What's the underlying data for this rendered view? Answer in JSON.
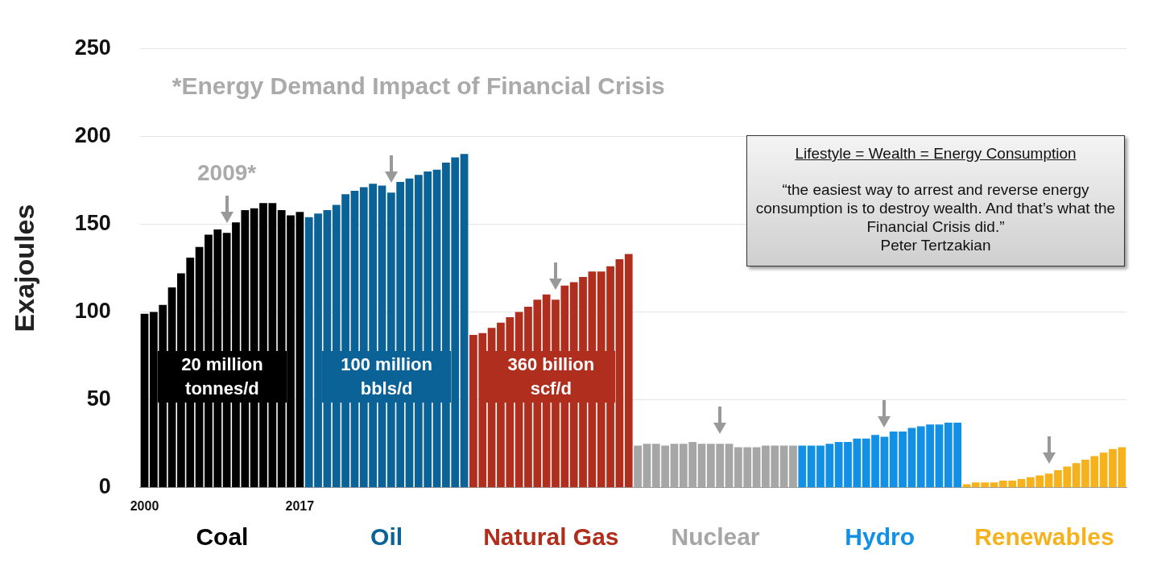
{
  "chart_data": {
    "type": "bar",
    "title": "*Energy Demand Impact of Financial Crisis",
    "ylabel": "Exajoules",
    "categories": [
      "2000",
      null,
      null,
      null,
      null,
      null,
      null,
      null,
      null,
      null,
      null,
      null,
      null,
      null,
      null,
      null,
      null,
      "2017",
      null,
      null,
      null,
      null,
      null,
      null,
      null,
      null,
      null,
      null,
      null,
      null,
      null,
      null,
      null,
      null,
      null,
      null,
      null,
      null,
      null,
      null,
      null,
      null,
      null,
      null,
      null,
      null,
      null,
      null,
      null,
      null,
      null,
      null,
      null,
      null,
      null,
      null,
      null,
      null,
      null,
      null,
      null,
      null,
      null,
      null,
      null,
      null,
      null,
      null,
      null,
      null,
      null,
      null,
      null,
      null,
      null,
      null,
      null,
      null,
      null,
      null,
      null,
      null,
      null,
      null,
      null,
      null,
      null,
      null,
      null,
      null,
      null,
      null,
      null,
      null,
      null,
      null,
      null,
      null,
      null,
      null,
      null,
      null,
      null,
      null,
      null,
      null,
      null,
      null
    ],
    "series": [
      {
        "name": "Coal",
        "color": "#000000",
        "values": [
          99,
          100,
          104,
          114,
          122,
          131,
          137,
          144,
          147,
          145,
          151,
          158,
          159,
          162,
          162,
          158,
          155,
          157,
          null,
          null,
          null,
          null,
          null,
          null,
          null,
          null,
          null,
          null,
          null,
          null,
          null,
          null,
          null,
          null,
          null,
          null,
          null,
          null,
          null,
          null,
          null,
          null,
          null,
          null,
          null,
          null,
          null,
          null,
          null,
          null,
          null,
          null,
          null,
          null,
          null,
          null,
          null,
          null,
          null,
          null,
          null,
          null,
          null,
          null,
          null,
          null,
          null,
          null,
          null,
          null,
          null,
          null,
          null,
          null,
          null,
          null,
          null,
          null,
          null,
          null,
          null,
          null,
          null,
          null,
          null,
          null,
          null,
          null,
          null,
          null,
          null,
          null,
          null,
          null,
          null,
          null,
          null,
          null,
          null,
          null,
          null,
          null,
          null,
          null,
          null,
          null,
          null,
          null
        ]
      },
      {
        "name": "Oil",
        "color": "#0b6297",
        "values": [
          null,
          null,
          null,
          null,
          null,
          null,
          null,
          null,
          null,
          null,
          null,
          null,
          null,
          null,
          null,
          null,
          null,
          null,
          154,
          156,
          158,
          161,
          167,
          169,
          171,
          173,
          172,
          168,
          174,
          176,
          178,
          180,
          181,
          185,
          188,
          190,
          null,
          null,
          null,
          null,
          null,
          null,
          null,
          null,
          null,
          null,
          null,
          null,
          null,
          null,
          null,
          null,
          null,
          null,
          null,
          null,
          null,
          null,
          null,
          null,
          null,
          null,
          null,
          null,
          null,
          null,
          null,
          null,
          null,
          null,
          null,
          null,
          null,
          null,
          null,
          null,
          null,
          null,
          null,
          null,
          null,
          null,
          null,
          null,
          null,
          null,
          null,
          null,
          null,
          null,
          null,
          null,
          null,
          null,
          null,
          null,
          null,
          null,
          null,
          null,
          null,
          null,
          null,
          null,
          null,
          null,
          null,
          null
        ]
      },
      {
        "name": "Natural Gas",
        "color": "#b02e1d",
        "values": [
          null,
          null,
          null,
          null,
          null,
          null,
          null,
          null,
          null,
          null,
          null,
          null,
          null,
          null,
          null,
          null,
          null,
          null,
          null,
          null,
          null,
          null,
          null,
          null,
          null,
          null,
          null,
          null,
          null,
          null,
          null,
          null,
          null,
          null,
          null,
          null,
          87,
          88,
          91,
          94,
          97,
          100,
          103,
          107,
          110,
          107,
          115,
          117,
          120,
          123,
          123,
          126,
          130,
          133,
          null,
          null,
          null,
          null,
          null,
          null,
          null,
          null,
          null,
          null,
          null,
          null,
          null,
          null,
          null,
          null,
          null,
          null,
          null,
          null,
          null,
          null,
          null,
          null,
          null,
          null,
          null,
          null,
          null,
          null,
          null,
          null,
          null,
          null,
          null,
          null,
          null,
          null,
          null,
          null,
          null,
          null,
          null,
          null,
          null,
          null,
          null,
          null,
          null,
          null,
          null,
          null,
          null,
          null
        ]
      },
      {
        "name": "Nuclear",
        "color": "#a6a6a6",
        "values": [
          null,
          null,
          null,
          null,
          null,
          null,
          null,
          null,
          null,
          null,
          null,
          null,
          null,
          null,
          null,
          null,
          null,
          null,
          null,
          null,
          null,
          null,
          null,
          null,
          null,
          null,
          null,
          null,
          null,
          null,
          null,
          null,
          null,
          null,
          null,
          null,
          null,
          null,
          null,
          null,
          null,
          null,
          null,
          null,
          null,
          null,
          null,
          null,
          null,
          null,
          null,
          null,
          null,
          null,
          24,
          25,
          25,
          24,
          25,
          25,
          26,
          25,
          25,
          25,
          25,
          23,
          23,
          23,
          24,
          24,
          24,
          24,
          null,
          null,
          null,
          null,
          null,
          null,
          null,
          null,
          null,
          null,
          null,
          null,
          null,
          null,
          null,
          null,
          null,
          null,
          null,
          null,
          null,
          null,
          null,
          null,
          null,
          null,
          null,
          null,
          null,
          null,
          null,
          null,
          null,
          null,
          null,
          null
        ]
      },
      {
        "name": "Hydro",
        "color": "#1190e6",
        "values": [
          null,
          null,
          null,
          null,
          null,
          null,
          null,
          null,
          null,
          null,
          null,
          null,
          null,
          null,
          null,
          null,
          null,
          null,
          null,
          null,
          null,
          null,
          null,
          null,
          null,
          null,
          null,
          null,
          null,
          null,
          null,
          null,
          null,
          null,
          null,
          null,
          null,
          null,
          null,
          null,
          null,
          null,
          null,
          null,
          null,
          null,
          null,
          null,
          null,
          null,
          null,
          null,
          null,
          null,
          null,
          null,
          null,
          null,
          null,
          null,
          null,
          null,
          null,
          null,
          null,
          null,
          null,
          null,
          null,
          null,
          null,
          null,
          24,
          24,
          24,
          25,
          26,
          26,
          28,
          28,
          30,
          29,
          32,
          32,
          34,
          35,
          36,
          36,
          37,
          37,
          null,
          null,
          null,
          null,
          null,
          null,
          null,
          null,
          null,
          null,
          null,
          null,
          null,
          null,
          null,
          null,
          null,
          null
        ]
      },
      {
        "name": "Renewables",
        "color": "#f6b21c",
        "values": [
          null,
          null,
          null,
          null,
          null,
          null,
          null,
          null,
          null,
          null,
          null,
          null,
          null,
          null,
          null,
          null,
          null,
          null,
          null,
          null,
          null,
          null,
          null,
          null,
          null,
          null,
          null,
          null,
          null,
          null,
          null,
          null,
          null,
          null,
          null,
          null,
          null,
          null,
          null,
          null,
          null,
          null,
          null,
          null,
          null,
          null,
          null,
          null,
          null,
          null,
          null,
          null,
          null,
          null,
          null,
          null,
          null,
          null,
          null,
          null,
          null,
          null,
          null,
          null,
          null,
          null,
          null,
          null,
          null,
          null,
          null,
          null,
          null,
          null,
          null,
          null,
          null,
          null,
          null,
          null,
          null,
          null,
          null,
          null,
          null,
          null,
          null,
          null,
          null,
          null,
          2,
          3,
          3,
          3,
          4,
          4,
          5,
          6,
          7,
          8,
          10,
          12,
          14,
          16,
          18,
          20,
          22,
          23
        ]
      }
    ],
    "ylim": [
      0,
      250
    ],
    "yticks": [
      0,
      50,
      100,
      150,
      200,
      250
    ],
    "grid": "y",
    "annotations": [
      "2009*",
      "20 million tonnes/d",
      "100 million bbls/d",
      "360 billion scf/d",
      "Lifestyle = Wealth = Energy Consumption",
      "“the easiest way to arrest and reverse energy consumption is to destroy wealth. And that’s what the Financial Crisis did.”",
      "Peter Tertzakian"
    ]
  }
}
